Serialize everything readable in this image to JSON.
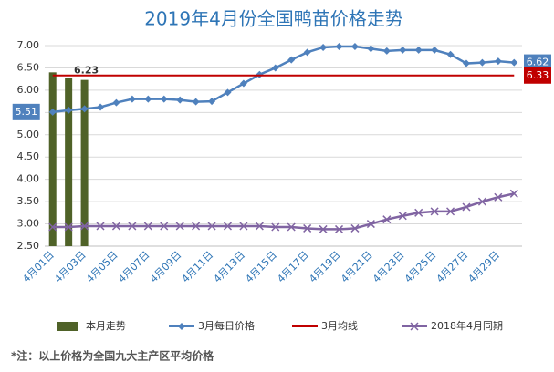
{
  "chart_data": {
    "type": "combo",
    "title": "2019年4月份全国鸭苗价格走势",
    "note": "*注：以上价格为全国九大主产区平均价格",
    "categories": [
      "4月01日",
      null,
      "4月03日",
      null,
      "4月05日",
      null,
      "4月07日",
      null,
      "4月09日",
      null,
      "4月11日",
      null,
      "4月13日",
      null,
      "4月15日",
      null,
      "4月17日",
      null,
      "4月19日",
      null,
      "4月21日",
      null,
      "4月23日",
      null,
      "4月25日",
      null,
      "4月27日",
      null,
      "4月29日",
      null
    ],
    "ylim": [
      2.5,
      7
    ],
    "yticks": [
      {
        "value": 2.5,
        "label": "2.50"
      },
      {
        "value": 3,
        "label": "3.00"
      },
      {
        "value": 3.5,
        "label": "3.50"
      },
      {
        "value": 4,
        "label": "4.00"
      },
      {
        "value": 4.5,
        "label": "4.50"
      },
      {
        "value": 5,
        "label": "5.00"
      },
      {
        "value": 5.5,
        "label": "5.50"
      },
      {
        "value": 6,
        "label": "6.00"
      },
      {
        "value": 6.5,
        "label": "6.50"
      },
      {
        "value": 7,
        "label": "7.00"
      }
    ],
    "grid": true,
    "legend": "bottom",
    "series": [
      {
        "name": "本月走势",
        "type": "bar",
        "color": "#4f6228",
        "values": [
          6.4,
          6.28,
          6.23,
          null,
          null,
          null,
          null,
          null,
          null,
          null,
          null,
          null,
          null,
          null,
          null,
          null,
          null,
          null,
          null,
          null,
          null,
          null,
          null,
          null,
          null,
          null,
          null,
          null,
          null,
          null
        ]
      },
      {
        "name": "3月每日价格",
        "type": "line",
        "marker": "diamond",
        "color": "#4f81bd",
        "values": [
          5.51,
          5.55,
          5.58,
          5.62,
          5.72,
          5.8,
          5.8,
          5.8,
          5.78,
          5.74,
          5.75,
          5.95,
          6.15,
          6.35,
          6.5,
          6.68,
          6.85,
          6.96,
          6.98,
          6.98,
          6.93,
          6.88,
          6.9,
          6.9,
          6.9,
          6.8,
          6.6,
          6.62,
          6.65,
          6.62
        ]
      },
      {
        "name": "3月均线",
        "type": "line",
        "marker": "none",
        "color": "#c00000",
        "values": [
          6.33,
          6.33,
          6.33,
          6.33,
          6.33,
          6.33,
          6.33,
          6.33,
          6.33,
          6.33,
          6.33,
          6.33,
          6.33,
          6.33,
          6.33,
          6.33,
          6.33,
          6.33,
          6.33,
          6.33,
          6.33,
          6.33,
          6.33,
          6.33,
          6.33,
          6.33,
          6.33,
          6.33,
          6.33,
          6.33
        ]
      },
      {
        "name": "2018年4月同期",
        "type": "line",
        "marker": "x",
        "color": "#8064a2",
        "values": [
          2.93,
          2.93,
          2.95,
          2.95,
          2.95,
          2.95,
          2.95,
          2.95,
          2.95,
          2.95,
          2.95,
          2.95,
          2.95,
          2.95,
          2.93,
          2.93,
          2.9,
          2.88,
          2.88,
          2.9,
          3.0,
          3.1,
          3.18,
          3.25,
          3.28,
          3.28,
          3.38,
          3.5,
          3.6,
          3.68
        ]
      }
    ]
  }
}
